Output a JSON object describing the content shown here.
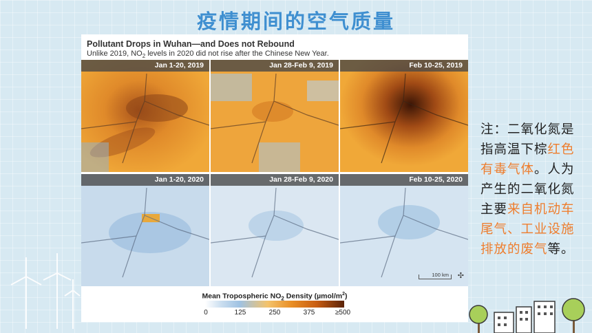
{
  "slide": {
    "title": "疫情期间的空气质量"
  },
  "figure": {
    "title": "Pollutant Drops in Wuhan—and Does not Rebound",
    "subtitle_pre": "Unlike 2019, NO",
    "subtitle_sub": "2",
    "subtitle_post": " levels in 2020 did not rise after the Chinese New Year.",
    "panels_2019": [
      "Jan 1-20, 2019",
      "Jan 28-Feb 9, 2019",
      "Feb 10-25, 2019"
    ],
    "panels_2020": [
      "Jan 1-20, 2020",
      "Jan 28-Feb 9, 2020",
      "Feb 10-25, 2020"
    ],
    "scale_label": "100 km",
    "legend": {
      "title_pre": "Mean Tropospheric NO",
      "title_sub": "2",
      "title_post": " Density (µmol/m",
      "title_sup": "2",
      "title_end": ")",
      "ticks": [
        "0",
        "125",
        "250",
        "375",
        "≥500"
      ]
    }
  },
  "note": {
    "part1": "注：二氧化氮是指高温下棕",
    "highlight1": "红色有毒气体",
    "part2": "。人为产生的二氧化氮主要",
    "highlight2": "来自机动车尾气、工业设施排放的废气",
    "part3": "等。"
  },
  "colors": {
    "title": "#3f8fd0",
    "highlight": "#ee7d2d",
    "background": "#d7e9f2"
  }
}
